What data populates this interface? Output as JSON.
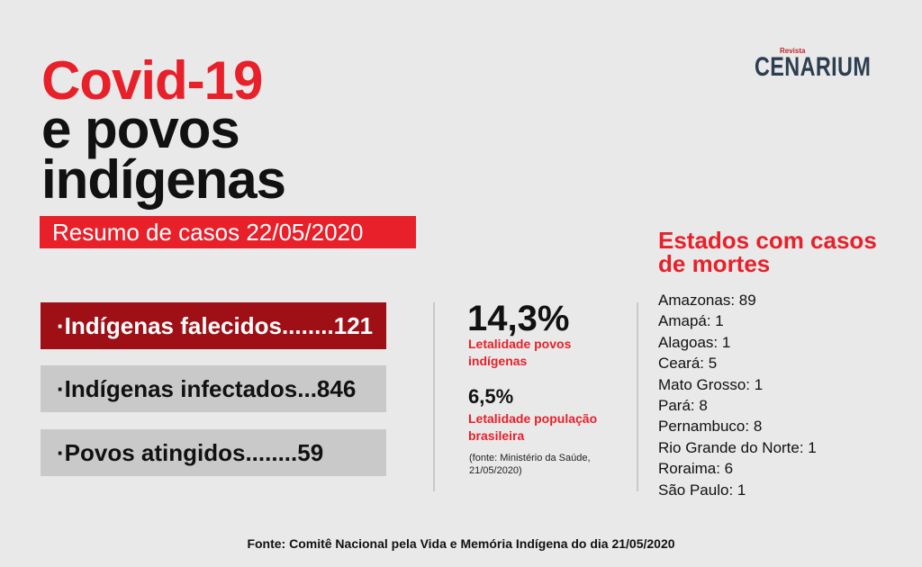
{
  "header": {
    "title_line1": "Covid-19",
    "title_line2": "e povos",
    "title_line3": "indígenas",
    "subtitle": "Resumo de casos  22/05/2020"
  },
  "logo": {
    "small": "Revista",
    "main": "CENARIUM"
  },
  "stats": [
    {
      "text": "·Indígenas falecidos........121"
    },
    {
      "text": "·Indígenas infectados...846"
    },
    {
      "text": "·Povos atingidos........59"
    }
  ],
  "lethality": {
    "indigenous_value": "14,3%",
    "indigenous_label": "Letalidade povos indígenas",
    "brazil_value": "6,5%",
    "brazil_label": "Letalidade população brasileira",
    "source": "(fonte: Ministério da Saúde, 21/05/2020)"
  },
  "states": {
    "title": "Estados com casos de mortes",
    "items": [
      "Amazonas: 89",
      "Amapá: 1",
      "Alagoas: 1",
      "Ceará: 5",
      "Mato Grosso: 1",
      "Pará: 8",
      "Pernambuco: 8",
      "Rio Grande do Norte: 1",
      "Roraima: 6",
      "São Paulo: 1"
    ]
  },
  "footer": "Fonte: Comitê Nacional pela Vida e Memória Indígena do dia 21/05/2020",
  "colors": {
    "accent": "#e8202a",
    "dark_red": "#9e1016",
    "gray_box": "#c9c9c9",
    "logo": "#2c3e50"
  }
}
